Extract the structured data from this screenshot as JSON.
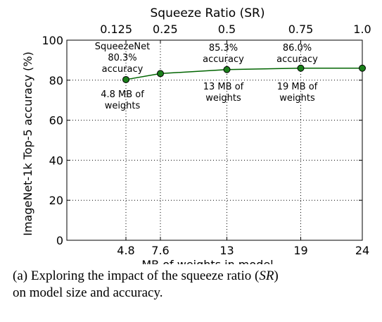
{
  "chart_data": {
    "type": "line",
    "title": "",
    "xlabel": "MB of weights in model",
    "ylabel": "ImageNet-1k Top-5 accuracy (%)",
    "top_axis_label": "Squeeze Ratio (SR)",
    "xlim": [
      0,
      24
    ],
    "ylim": [
      0,
      100
    ],
    "x_ticks": [
      4.8,
      7.6,
      13,
      19,
      24
    ],
    "x_tick_labels": [
      "4.8",
      "7.6",
      "13",
      "19",
      "24"
    ],
    "top_ticks": [
      4.8,
      7.6,
      13,
      19,
      24
    ],
    "top_tick_labels": [
      "0.125",
      "0.25",
      "0.5",
      "0.75",
      "1.0"
    ],
    "y_ticks": [
      0,
      20,
      40,
      60,
      80,
      100
    ],
    "y_tick_labels": [
      "0",
      "20",
      "40",
      "60",
      "80",
      "100"
    ],
    "grid": true,
    "series": [
      {
        "x": [
          4.8,
          7.6,
          13,
          19,
          24
        ],
        "y": [
          80.3,
          83.3,
          85.3,
          86.0,
          86.0
        ],
        "color": "#006400",
        "marker_color": "#1a7f1a"
      }
    ],
    "annotations": [
      {
        "lines": [
          "SqueezeNet",
          "80.3%",
          "accuracy"
        ]
      },
      {
        "lines": [
          "4.8 MB of",
          "weights"
        ]
      },
      {
        "lines": [
          "85.3%",
          "accuracy"
        ]
      },
      {
        "lines": [
          "13 MB of",
          "weights"
        ]
      },
      {
        "lines": [
          "86.0%",
          "accuracy"
        ]
      },
      {
        "lines": [
          "19 MB of",
          "weights"
        ]
      }
    ]
  },
  "caption": {
    "prefix": "(a) Exploring the impact of the squeeze ratio (",
    "symbol": "SR",
    "suffix": ")",
    "line2": "on model size and accuracy."
  }
}
